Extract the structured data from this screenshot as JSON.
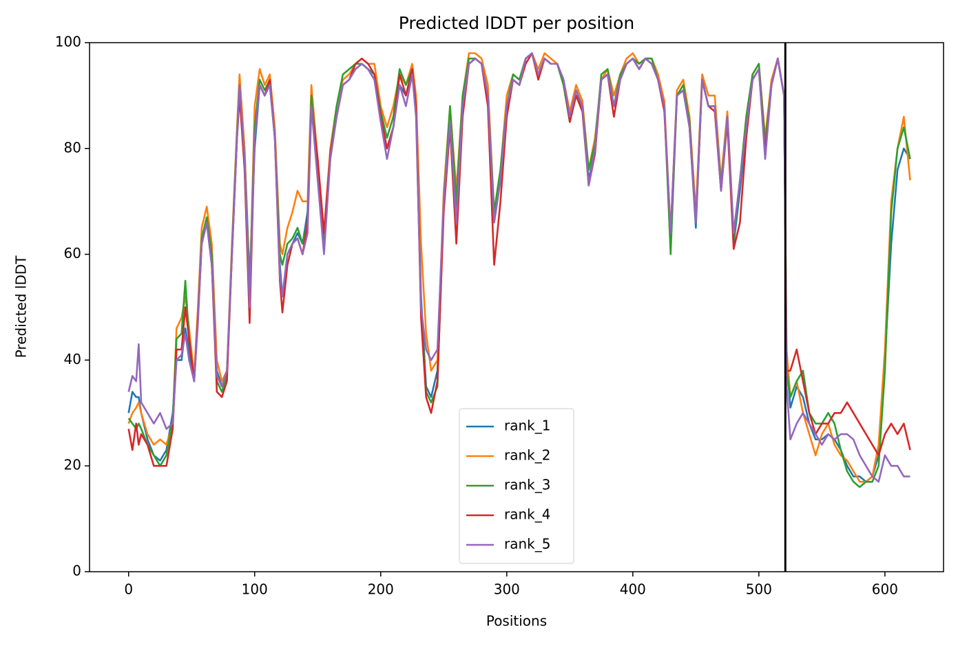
{
  "chart_data": {
    "type": "line",
    "title": "Predicted lDDT per position",
    "xlabel": "Positions",
    "ylabel": "Predicted lDDT",
    "xlim": [
      -31,
      646.5
    ],
    "ylim": [
      0,
      100
    ],
    "xticks": [
      0,
      100,
      200,
      300,
      400,
      500,
      600
    ],
    "yticks": [
      0,
      20,
      40,
      60,
      80,
      100
    ],
    "vline": 521,
    "vline_color": "#000000",
    "legend": "lower center",
    "grid": false,
    "x": [
      0,
      3,
      6,
      8,
      10,
      15,
      20,
      25,
      30,
      35,
      38,
      42,
      45,
      48,
      52,
      55,
      58,
      62,
      66,
      70,
      74,
      78,
      82,
      86,
      88,
      92,
      96,
      100,
      104,
      108,
      112,
      116,
      120,
      122,
      126,
      130,
      134,
      138,
      142,
      145,
      150,
      155,
      160,
      165,
      170,
      175,
      180,
      185,
      190,
      195,
      200,
      205,
      210,
      215,
      220,
      225,
      228,
      232,
      236,
      240,
      245,
      250,
      255,
      260,
      265,
      270,
      275,
      280,
      285,
      290,
      295,
      300,
      305,
      310,
      315,
      320,
      325,
      330,
      335,
      340,
      345,
      350,
      355,
      360,
      365,
      370,
      375,
      380,
      385,
      390,
      395,
      400,
      405,
      410,
      415,
      420,
      425,
      430,
      435,
      440,
      445,
      450,
      455,
      460,
      465,
      470,
      475,
      480,
      485,
      490,
      495,
      500,
      505,
      510,
      515,
      520,
      522,
      525,
      530,
      535,
      540,
      545,
      550,
      555,
      560,
      565,
      570,
      575,
      580,
      585,
      590,
      595,
      600,
      605,
      610,
      615,
      620
    ],
    "series": [
      {
        "name": "rank_1",
        "color": "#1f77b4",
        "values": [
          30,
          34,
          33,
          33,
          30,
          25,
          22,
          21,
          23,
          30,
          40,
          40,
          46,
          42,
          36,
          48,
          62,
          66,
          58,
          38,
          35,
          38,
          60,
          82,
          90,
          80,
          55,
          80,
          92,
          90,
          92,
          82,
          58,
          52,
          60,
          62,
          64,
          62,
          68,
          90,
          76,
          62,
          78,
          86,
          92,
          93,
          95,
          96,
          95,
          93,
          86,
          80,
          84,
          92,
          90,
          95,
          88,
          52,
          35,
          33,
          38,
          70,
          85,
          68,
          88,
          96,
          97,
          96,
          90,
          66,
          74,
          88,
          93,
          92,
          97,
          98,
          94,
          97,
          96,
          96,
          93,
          86,
          91,
          88,
          74,
          80,
          93,
          94,
          88,
          93,
          96,
          97,
          95,
          97,
          96,
          93,
          88,
          62,
          90,
          91,
          84,
          65,
          93,
          88,
          88,
          72,
          86,
          62,
          72,
          84,
          93,
          95,
          80,
          92,
          97,
          90,
          40,
          31,
          35,
          33,
          28,
          25,
          25,
          26,
          25,
          23,
          20,
          18,
          18,
          17,
          18,
          22,
          40,
          62,
          76,
          80,
          78
        ]
      },
      {
        "name": "rank_2",
        "color": "#ff7f0e",
        "values": [
          28,
          30,
          31,
          32,
          30,
          26,
          24,
          25,
          24,
          28,
          46,
          48,
          52,
          46,
          37,
          50,
          65,
          69,
          62,
          40,
          36,
          38,
          62,
          84,
          94,
          80,
          52,
          88,
          95,
          92,
          94,
          84,
          62,
          60,
          65,
          68,
          72,
          70,
          70,
          92,
          78,
          64,
          80,
          88,
          93,
          94,
          96,
          97,
          96,
          96,
          88,
          84,
          88,
          94,
          92,
          96,
          90,
          62,
          45,
          38,
          40,
          72,
          88,
          72,
          90,
          98,
          98,
          97,
          92,
          68,
          76,
          90,
          94,
          93,
          97,
          98,
          95,
          98,
          97,
          96,
          93,
          87,
          92,
          89,
          76,
          82,
          93,
          95,
          90,
          94,
          97,
          98,
          96,
          97,
          97,
          94,
          89,
          64,
          91,
          93,
          86,
          68,
          94,
          90,
          90,
          74,
          87,
          64,
          74,
          86,
          94,
          96,
          82,
          93,
          97,
          90,
          42,
          33,
          36,
          30,
          26,
          22,
          26,
          28,
          24,
          22,
          21,
          19,
          17,
          17,
          18,
          24,
          42,
          70,
          80,
          86,
          74
        ]
      },
      {
        "name": "rank_3",
        "color": "#2ca02c",
        "values": [
          29,
          28,
          27,
          28,
          27,
          24,
          22,
          20,
          22,
          29,
          44,
          45,
          55,
          44,
          36,
          48,
          63,
          67,
          60,
          36,
          34,
          37,
          61,
          83,
          92,
          78,
          52,
          84,
          93,
          91,
          93,
          82,
          60,
          58,
          62,
          63,
          65,
          62,
          66,
          90,
          77,
          62,
          79,
          88,
          94,
          95,
          96,
          96,
          95,
          94,
          87,
          82,
          86,
          95,
          92,
          95,
          88,
          50,
          34,
          32,
          35,
          70,
          88,
          70,
          90,
          97,
          97,
          96,
          90,
          68,
          76,
          88,
          94,
          93,
          97,
          98,
          94,
          97,
          96,
          96,
          92,
          85,
          90,
          88,
          76,
          81,
          94,
          95,
          88,
          94,
          96,
          97,
          96,
          97,
          97,
          93,
          88,
          60,
          90,
          92,
          85,
          66,
          93,
          88,
          88,
          73,
          86,
          63,
          74,
          86,
          94,
          96,
          81,
          92,
          97,
          90,
          38,
          33,
          36,
          38,
          30,
          28,
          28,
          30,
          28,
          23,
          19,
          17,
          16,
          17,
          17,
          20,
          38,
          68,
          80,
          84,
          78
        ]
      },
      {
        "name": "rank_4",
        "color": "#d62728",
        "values": [
          27,
          23,
          28,
          24,
          26,
          24,
          20,
          20,
          20,
          27,
          42,
          42,
          50,
          44,
          36,
          48,
          62,
          66,
          58,
          34,
          33,
          36,
          60,
          82,
          90,
          76,
          47,
          82,
          92,
          90,
          93,
          82,
          55,
          49,
          58,
          62,
          63,
          60,
          66,
          88,
          78,
          64,
          79,
          86,
          92,
          93,
          96,
          97,
          96,
          94,
          86,
          80,
          84,
          94,
          90,
          95,
          88,
          48,
          33,
          30,
          36,
          68,
          84,
          62,
          86,
          96,
          97,
          96,
          88,
          58,
          70,
          86,
          93,
          92,
          96,
          98,
          93,
          97,
          96,
          96,
          93,
          85,
          90,
          87,
          73,
          79,
          93,
          94,
          86,
          93,
          96,
          97,
          95,
          97,
          96,
          93,
          87,
          64,
          90,
          91,
          84,
          66,
          93,
          88,
          87,
          72,
          85,
          61,
          66,
          82,
          93,
          95,
          79,
          92,
          97,
          90,
          38,
          38,
          42,
          36,
          30,
          26,
          28,
          28,
          30,
          30,
          32,
          30,
          28,
          26,
          24,
          22,
          26,
          28,
          26,
          28,
          23
        ]
      },
      {
        "name": "rank_5",
        "color": "#9467bd",
        "values": [
          34,
          37,
          36,
          43,
          32,
          30,
          28,
          30,
          27,
          28,
          40,
          41,
          45,
          40,
          36,
          47,
          62,
          66,
          58,
          37,
          35,
          38,
          60,
          82,
          92,
          78,
          50,
          82,
          92,
          90,
          92,
          82,
          56,
          52,
          60,
          62,
          63,
          60,
          64,
          88,
          74,
          60,
          78,
          86,
          92,
          93,
          95,
          96,
          95,
          93,
          85,
          78,
          84,
          92,
          88,
          94,
          86,
          50,
          42,
          40,
          42,
          70,
          85,
          66,
          88,
          96,
          97,
          96,
          90,
          66,
          74,
          88,
          93,
          92,
          97,
          98,
          94,
          97,
          96,
          96,
          93,
          86,
          91,
          88,
          73,
          80,
          93,
          94,
          88,
          93,
          96,
          97,
          95,
          97,
          96,
          93,
          88,
          64,
          90,
          91,
          84,
          66,
          93,
          88,
          88,
          72,
          86,
          64,
          74,
          84,
          93,
          95,
          78,
          92,
          97,
          90,
          35,
          25,
          28,
          30,
          28,
          26,
          24,
          26,
          25,
          26,
          26,
          25,
          22,
          20,
          18,
          17,
          22,
          20,
          20,
          18,
          18
        ]
      }
    ]
  }
}
